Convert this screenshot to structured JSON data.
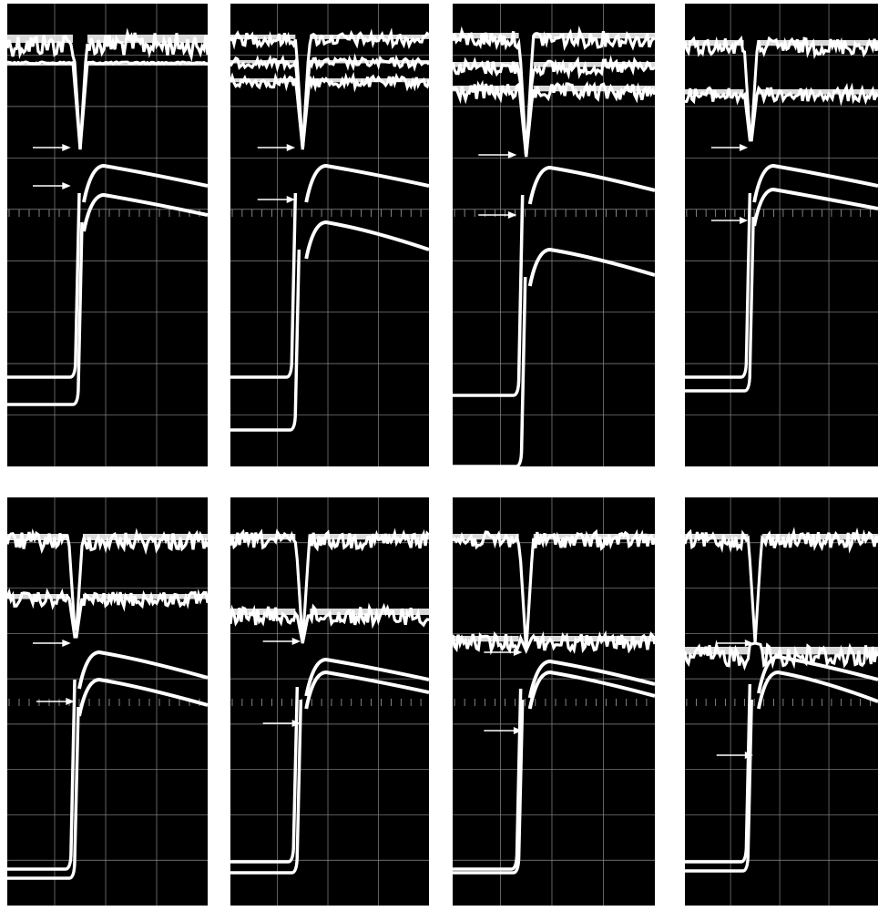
{
  "figure": {
    "background_color": "#ffffff",
    "screen_color": "#000000",
    "trace_color": "#ffffff",
    "grid_color": "#bbbbbb",
    "arrow_color": "#ffffff"
  },
  "panels": [
    {
      "id": "row1-col1",
      "row": 1,
      "col": 1,
      "arrows": 2,
      "steps": 2
    },
    {
      "id": "row1-col2",
      "row": 1,
      "col": 2,
      "arrows": 2,
      "steps": 2
    },
    {
      "id": "row1-col3",
      "row": 1,
      "col": 3,
      "arrows": 2,
      "steps": 2
    },
    {
      "id": "row1-col4",
      "row": 1,
      "col": 4,
      "arrows": 2,
      "steps": 2
    },
    {
      "id": "row2-col1",
      "row": 2,
      "col": 1,
      "arrows": 2,
      "steps": 2
    },
    {
      "id": "row2-col2",
      "row": 2,
      "col": 2,
      "arrows": 2,
      "steps": 2
    },
    {
      "id": "row2-col3",
      "row": 2,
      "col": 3,
      "arrows": 2,
      "steps": 2
    },
    {
      "id": "row2-col4",
      "row": 2,
      "col": 4,
      "arrows": 2,
      "steps": 2
    }
  ]
}
